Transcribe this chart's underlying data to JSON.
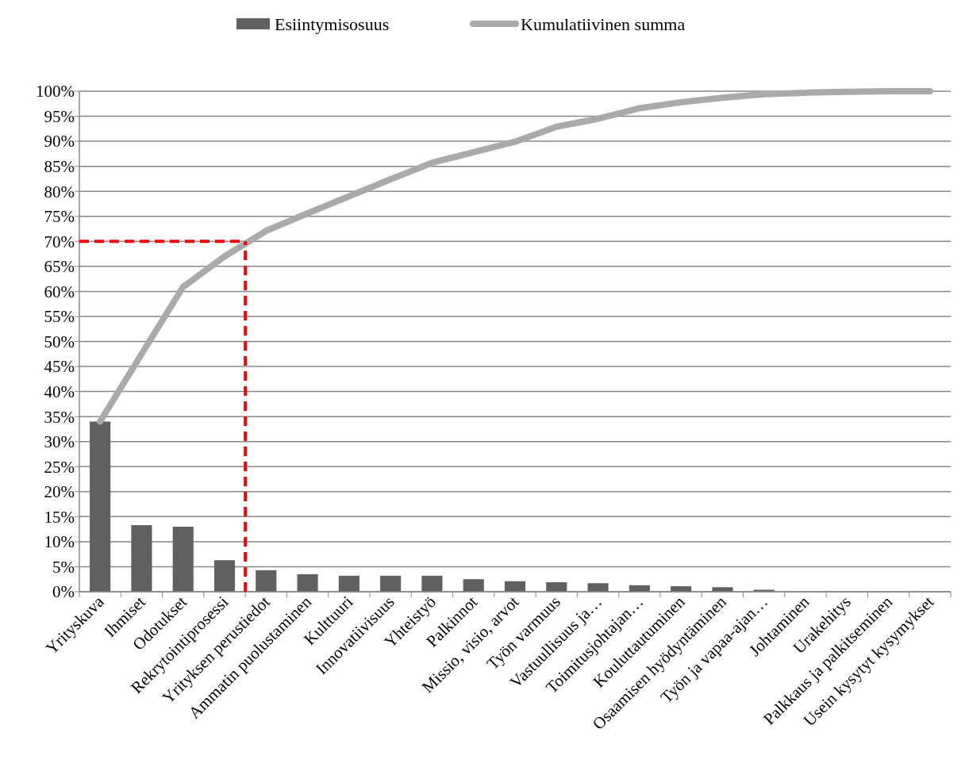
{
  "chart_data": {
    "type": "bar",
    "categories": [
      "Yrityskuva",
      "Ihmiset",
      "Odotukset",
      "Rekrytointiprosessi",
      "Yrityksen perustiedot",
      "Ammatin puolustaminen",
      "Kulttuuri",
      "Innovatiivisuus",
      "Yhteistyö",
      "Palkinnot",
      "Missio, visio, arvot",
      "Työn varmuus",
      "Vastuullisuus ja…",
      "Toimitusjohtajan…",
      "Kouluttautuminen",
      "Osaamisen hyödyntäminen",
      "Työn ja vapaa-ajan…",
      "Johtaminen",
      "Urakehitys",
      "Palkkaus ja palkitseminen",
      "Usein kysytyt kysymykset"
    ],
    "series": [
      {
        "name": "Esiintymisosuus",
        "color": "#606060",
        "values": [
          34,
          13.3,
          13,
          6.3,
          4.3,
          3.5,
          3.2,
          3.2,
          3.2,
          2.5,
          2.1,
          1.9,
          1.7,
          1.3,
          1.1,
          0.9,
          0.4,
          null,
          null,
          null,
          0
        ]
      },
      {
        "name": "Kumulatiivinen summa",
        "type": "line",
        "color": "#aaaaaa",
        "values": [
          34,
          47.5,
          60.9,
          67,
          72.1,
          75.6,
          79,
          82.4,
          85.7,
          87.8,
          89.9,
          92.9,
          94.5,
          96.6,
          97.8,
          98.7,
          99.4,
          99.7,
          99.9,
          100,
          100
        ]
      }
    ],
    "ylim": [
      0,
      100
    ],
    "yticks": [
      {
        "value": 0,
        "label": "0%"
      },
      {
        "value": 5,
        "label": "5%"
      },
      {
        "value": 10,
        "label": "10%"
      },
      {
        "value": 15,
        "label": "15%"
      },
      {
        "value": 20,
        "label": "20%"
      },
      {
        "value": 25,
        "label": "25%"
      },
      {
        "value": 30,
        "label": "30%"
      },
      {
        "value": 35,
        "label": "35%"
      },
      {
        "value": 40,
        "label": "40%"
      },
      {
        "value": 45,
        "label": "45%"
      },
      {
        "value": 50,
        "label": "50%"
      },
      {
        "value": 55,
        "label": "55%"
      },
      {
        "value": 60,
        "label": "60%"
      },
      {
        "value": 65,
        "label": "65%"
      },
      {
        "value": 70,
        "label": "70%"
      },
      {
        "value": 75,
        "label": "75%"
      },
      {
        "value": 80,
        "label": "80%"
      },
      {
        "value": 85,
        "label": "85%"
      },
      {
        "value": 90,
        "label": "90%"
      },
      {
        "value": 95,
        "label": "95%"
      },
      {
        "value": 100,
        "label": "100%"
      }
    ],
    "grid": "y",
    "legend": "top",
    "line_style": "solid",
    "ref_lines": [
      {
        "axis": "y",
        "value": 70,
        "color": "#ff0000",
        "line_style": "dashed"
      },
      {
        "axis": "x",
        "value": "Rekrytointiprosessi",
        "color": "#ff0000",
        "line_style": "dashed"
      }
    ]
  }
}
